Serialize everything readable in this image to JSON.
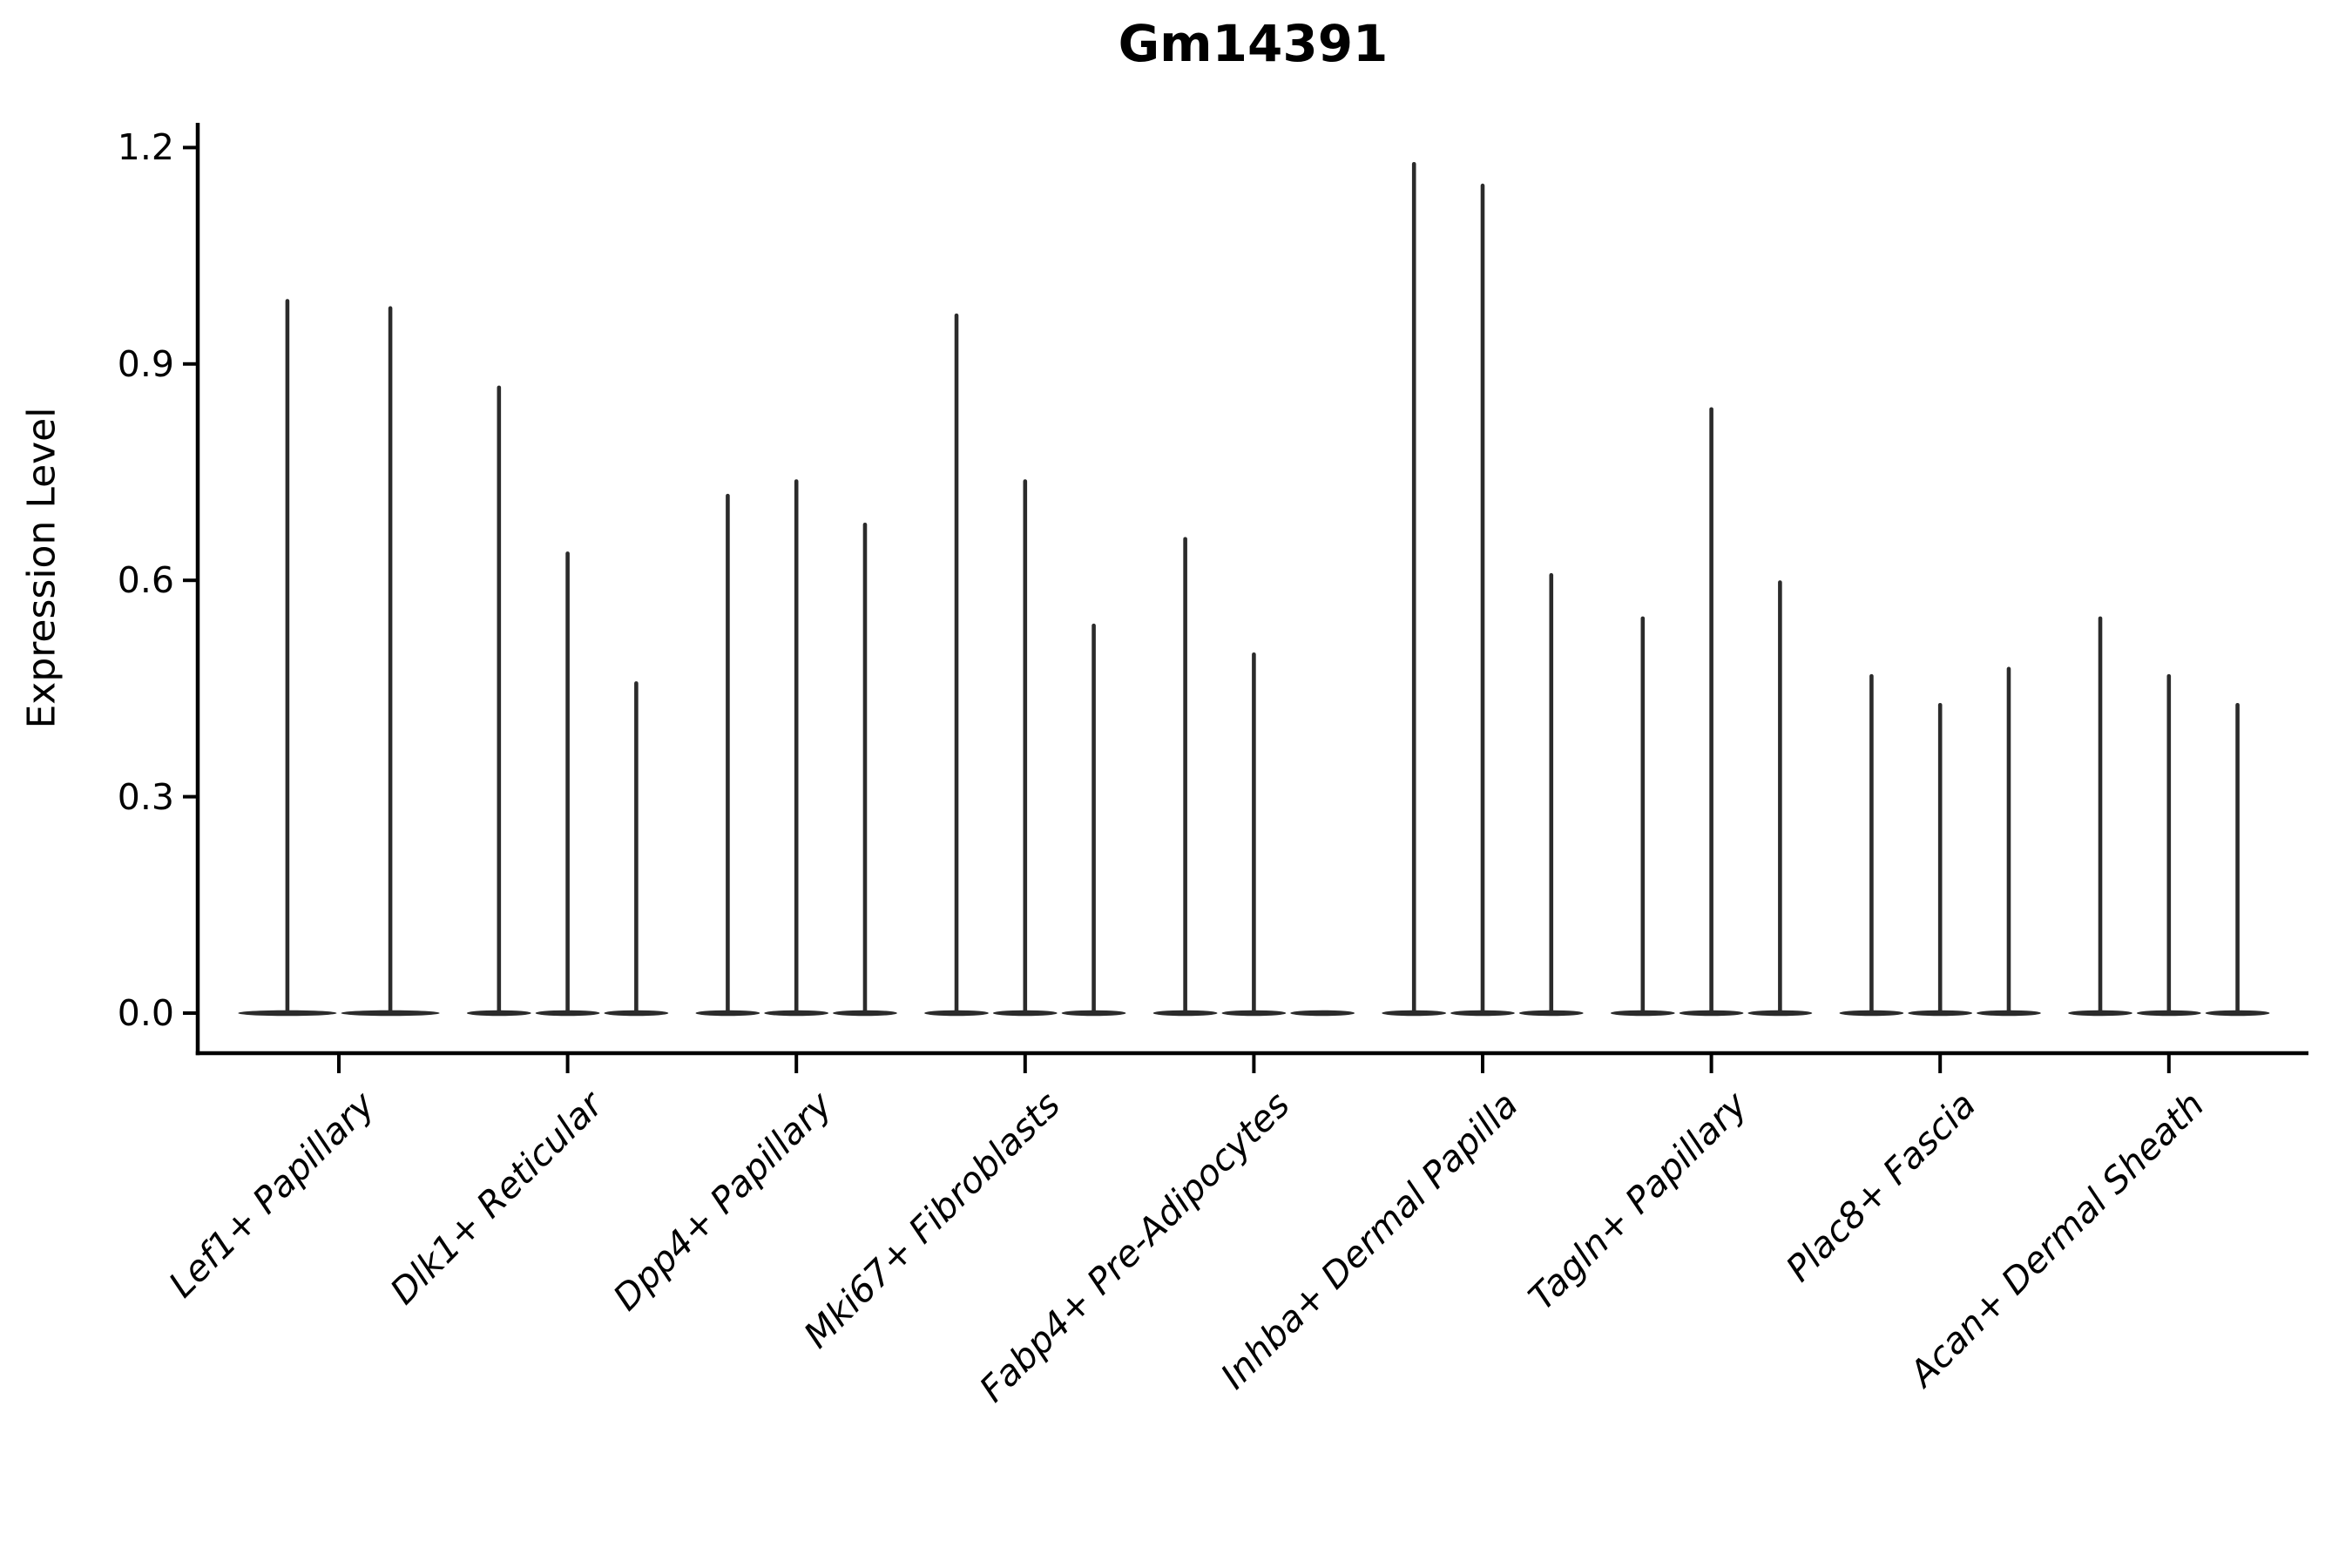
{
  "figure": {
    "title": "Gm14391",
    "background": "#ffffff"
  },
  "chart_data": {
    "type": "violin",
    "title": "Gm14391",
    "xlabel": "",
    "ylabel": "Expression Level",
    "ylim": [
      0,
      1.25
    ],
    "yticks": [
      0.0,
      0.3,
      0.6,
      0.9,
      1.2
    ],
    "ytick_labels": [
      "0.0",
      "0.3",
      "0.6",
      "0.9",
      "1.2"
    ],
    "xtick_rotation": 45,
    "grid": false,
    "legend": "none",
    "violin_color": "#2b2b2b",
    "axis_color": "#000000",
    "description": "Each category shows thin violins collapsed at 0 with narrow spikes; spike heights are the max expression values per violin (0 = flat disc only).",
    "categories": [
      {
        "label": "Lef1+ Papillary",
        "violin_maxima": [
          0.99,
          0.98
        ]
      },
      {
        "label": "Dlk1+ Reticular",
        "violin_maxima": [
          0.87,
          0.64,
          0.46
        ]
      },
      {
        "label": "Dpp4+ Papillary",
        "violin_maxima": [
          0.72,
          0.74,
          0.68
        ]
      },
      {
        "label": "Mki67+ Fibroblasts",
        "violin_maxima": [
          0.97,
          0.74,
          0.54
        ]
      },
      {
        "label": "Fabp4+ Pre-Adipocytes",
        "violin_maxima": [
          0.66,
          0.5,
          0
        ]
      },
      {
        "label": "Inhba+ Dermal Papilla",
        "violin_maxima": [
          1.18,
          1.15,
          0.61
        ]
      },
      {
        "label": "Tagln+ Papillary",
        "violin_maxima": [
          0.55,
          0.84,
          0.6
        ]
      },
      {
        "label": "Plac8+ Fascia",
        "violin_maxima": [
          0.47,
          0.43,
          0.48
        ]
      },
      {
        "label": "Acan+ Dermal Sheath",
        "violin_maxima": [
          0.55,
          0.47,
          0.43
        ]
      }
    ]
  }
}
